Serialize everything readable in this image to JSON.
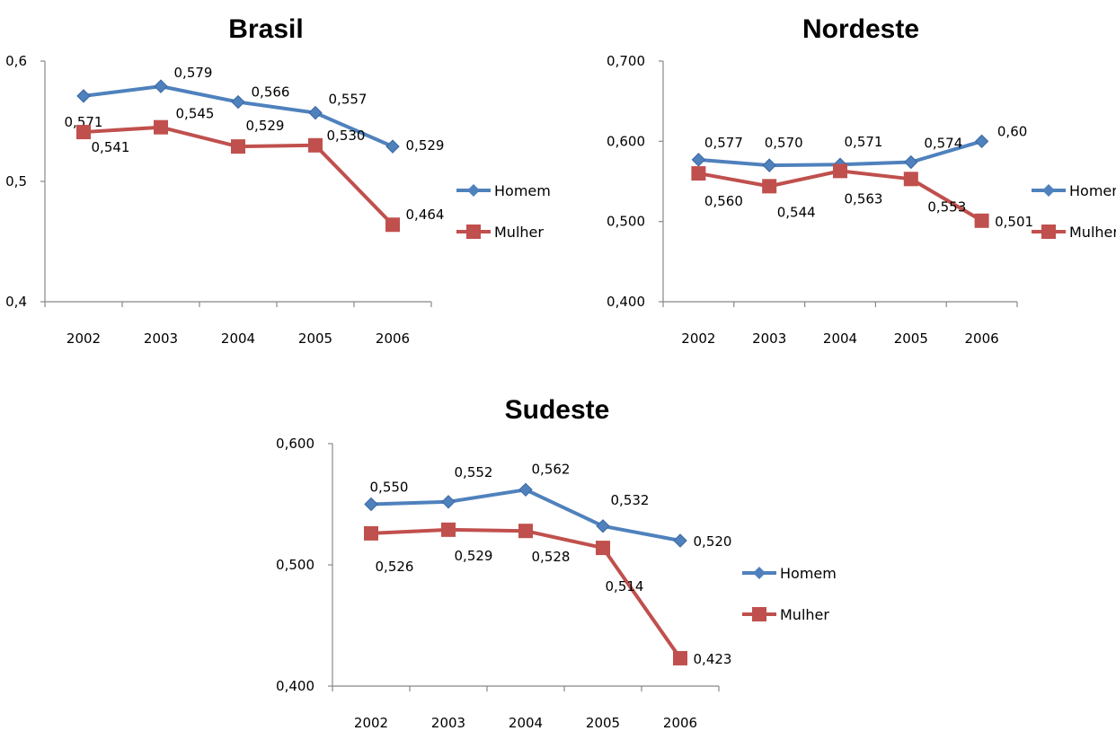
{
  "chart_data": [
    {
      "type": "line",
      "title": "Brasil",
      "categories": [
        "2002",
        "2003",
        "2004",
        "2005",
        "2006"
      ],
      "ylim": [
        0.4,
        0.6
      ],
      "yticks": [
        0.4,
        0.5,
        0.6
      ],
      "ytick_labels": [
        "0,4",
        "0,5",
        "0,6"
      ],
      "series": [
        {
          "name": "Homem",
          "color": "#4F81BD",
          "marker": "diamond",
          "values": [
            0.571,
            0.579,
            0.566,
            0.557,
            0.529
          ],
          "labels": [
            "0,571",
            "0,579",
            "0,566",
            "0,557",
            "0,529"
          ]
        },
        {
          "name": "Mulher",
          "color": "#C0504D",
          "marker": "square",
          "values": [
            0.541,
            0.545,
            0.529,
            0.53,
            0.464
          ],
          "labels": [
            "0,541",
            "0,545",
            "0,529",
            "0,530",
            "0,464"
          ]
        }
      ],
      "legend": "right"
    },
    {
      "type": "line",
      "title": "Nordeste",
      "categories": [
        "2002",
        "2003",
        "2004",
        "2005",
        "2006"
      ],
      "ylim": [
        0.4,
        0.7
      ],
      "yticks": [
        0.4,
        0.5,
        0.6,
        0.7
      ],
      "ytick_labels": [
        "0,400",
        "0,500",
        "0,600",
        "0,700"
      ],
      "series": [
        {
          "name": "Homem",
          "color": "#4F81BD",
          "marker": "diamond",
          "values": [
            0.577,
            0.57,
            0.571,
            0.574,
            0.6
          ],
          "labels": [
            "0,577",
            "0,570",
            "0,571",
            "0,574",
            "0,60"
          ]
        },
        {
          "name": "Mulher",
          "color": "#C0504D",
          "marker": "square",
          "values": [
            0.56,
            0.544,
            0.563,
            0.553,
            0.501
          ],
          "labels": [
            "0,560",
            "0,544",
            "0,563",
            "0,553",
            "0,501"
          ]
        }
      ],
      "legend": "right"
    },
    {
      "type": "line",
      "title": "Sudeste",
      "categories": [
        "2002",
        "2003",
        "2004",
        "2005",
        "2006"
      ],
      "ylim": [
        0.4,
        0.6
      ],
      "yticks": [
        0.4,
        0.5,
        0.6
      ],
      "ytick_labels": [
        "0,400",
        "0,500",
        "0,600"
      ],
      "series": [
        {
          "name": "Homem",
          "color": "#4F81BD",
          "marker": "diamond",
          "values": [
            0.55,
            0.552,
            0.562,
            0.532,
            0.52
          ],
          "labels": [
            "0,550",
            "0,552",
            "0,562",
            "0,532",
            "0,520"
          ]
        },
        {
          "name": "Mulher",
          "color": "#C0504D",
          "marker": "square",
          "values": [
            0.526,
            0.529,
            0.528,
            0.514,
            0.423
          ],
          "labels": [
            "0,526",
            "0,529",
            "0,528",
            "0,514",
            "0,423"
          ]
        }
      ],
      "legend": "right"
    }
  ]
}
